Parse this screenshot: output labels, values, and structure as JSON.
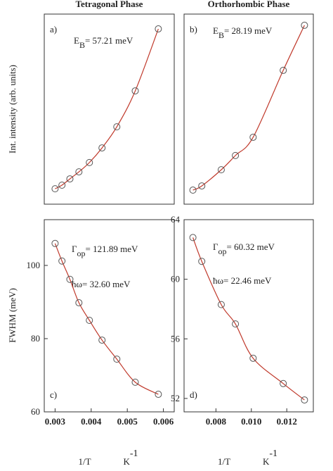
{
  "chart_data": [
    {
      "type": "scatter",
      "title": "Tetragonal Phase",
      "panel_label": "a)",
      "ylabel": "Int. intensity (arb. units)",
      "annotations": [
        {
          "parts": [
            {
              "text": "E"
            },
            {
              "text": "B",
              "shift": "sub"
            },
            {
              "text": "= 57.21 meV"
            }
          ]
        }
      ],
      "x": [
        0.003,
        0.00319,
        0.00341,
        0.00366,
        0.00395,
        0.0043,
        0.00471,
        0.00522,
        0.00586
      ],
      "series": [
        {
          "color": "#555555",
          "line_color": "#c0392b",
          "values": [
            8.1,
            10,
            13.3,
            17,
            21.9,
            29.6,
            40.7,
            59.6,
            92.2
          ]
        }
      ],
      "xlim": [
        0.0027,
        0.0063
      ],
      "ylim": [
        0,
        100
      ]
    },
    {
      "type": "scatter",
      "title": "Orthorhombic Phase",
      "panel_label": "b)",
      "annotations": [
        {
          "parts": [
            {
              "text": "E"
            },
            {
              "text": "B",
              "shift": "sub"
            },
            {
              "text": "= 28.19 meV"
            }
          ]
        }
      ],
      "x": [
        0.0067,
        0.0072,
        0.0083,
        0.0091,
        0.0101,
        0.0118,
        0.013
      ],
      "series": [
        {
          "color": "#555555",
          "line_color": "#c0392b",
          "values": [
            7.4,
            9.6,
            18.1,
            25.6,
            35.2,
            70.4,
            94.1
          ]
        }
      ],
      "xlim": [
        0.0062,
        0.0135
      ],
      "ylim": [
        0,
        100
      ]
    },
    {
      "type": "scatter",
      "panel_label": "c)",
      "ylabel": "FWHM (meV)",
      "xlabel": {
        "main": "1/T",
        "unit": "K",
        "exp": "-1"
      },
      "annotations": [
        {
          "parts": [
            {
              "text": "Γ"
            },
            {
              "text": "op",
              "shift": "sub"
            },
            {
              "text": "= 121.89 meV"
            }
          ]
        },
        {
          "parts": [
            {
              "text": "ħω= 32.60 meV"
            }
          ]
        }
      ],
      "x": [
        0.003,
        0.00319,
        0.00341,
        0.00366,
        0.00395,
        0.0043,
        0.00471,
        0.00522,
        0.00586
      ],
      "series": [
        {
          "color": "#555555",
          "line_color": "#c0392b",
          "values": [
            106,
            101.2,
            96.2,
            89.8,
            85,
            79.6,
            74.4,
            68.1,
            64.8
          ]
        }
      ],
      "xlim": [
        0.0027,
        0.0063
      ],
      "ylim": [
        60,
        112.5
      ],
      "xticks": [
        0.003,
        0.004,
        0.005,
        0.006
      ],
      "yticks": [
        60,
        80,
        100
      ]
    },
    {
      "type": "scatter",
      "panel_label": "d)",
      "xlabel": {
        "main": "1/T",
        "unit": "K",
        "exp": "-1"
      },
      "annotations": [
        {
          "parts": [
            {
              "text": "Γ"
            },
            {
              "text": "op",
              "shift": "sub"
            },
            {
              "text": "= 60.32 meV"
            }
          ]
        },
        {
          "parts": [
            {
              "text": "ħω= 22.46 meV"
            }
          ]
        }
      ],
      "x": [
        0.0067,
        0.0072,
        0.0083,
        0.0091,
        0.0101,
        0.0118,
        0.013
      ],
      "series": [
        {
          "color": "#555555",
          "line_color": "#c0392b",
          "values": [
            62.8,
            61.2,
            58.3,
            57.0,
            54.7,
            53.0,
            51.9
          ]
        }
      ],
      "xlim": [
        0.0062,
        0.0135
      ],
      "ylim": [
        51.1,
        64
      ],
      "xticks": [
        0.008,
        {
          "value": 0.01,
          "label": "0.010"
        },
        0.012
      ],
      "yticks": [
        52,
        56,
        60,
        64
      ]
    }
  ]
}
